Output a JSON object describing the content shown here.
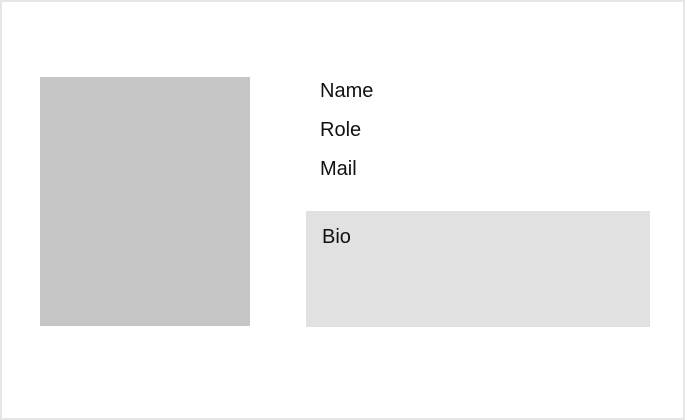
{
  "profile": {
    "name_label": "Name",
    "role_label": "Role",
    "mail_label": "Mail",
    "bio_label": "Bio"
  },
  "colors": {
    "card_border": "#e6e6e6",
    "photo_placeholder": "#c6c6c6",
    "bio_background": "#e1e1e1",
    "text": "#111111"
  }
}
